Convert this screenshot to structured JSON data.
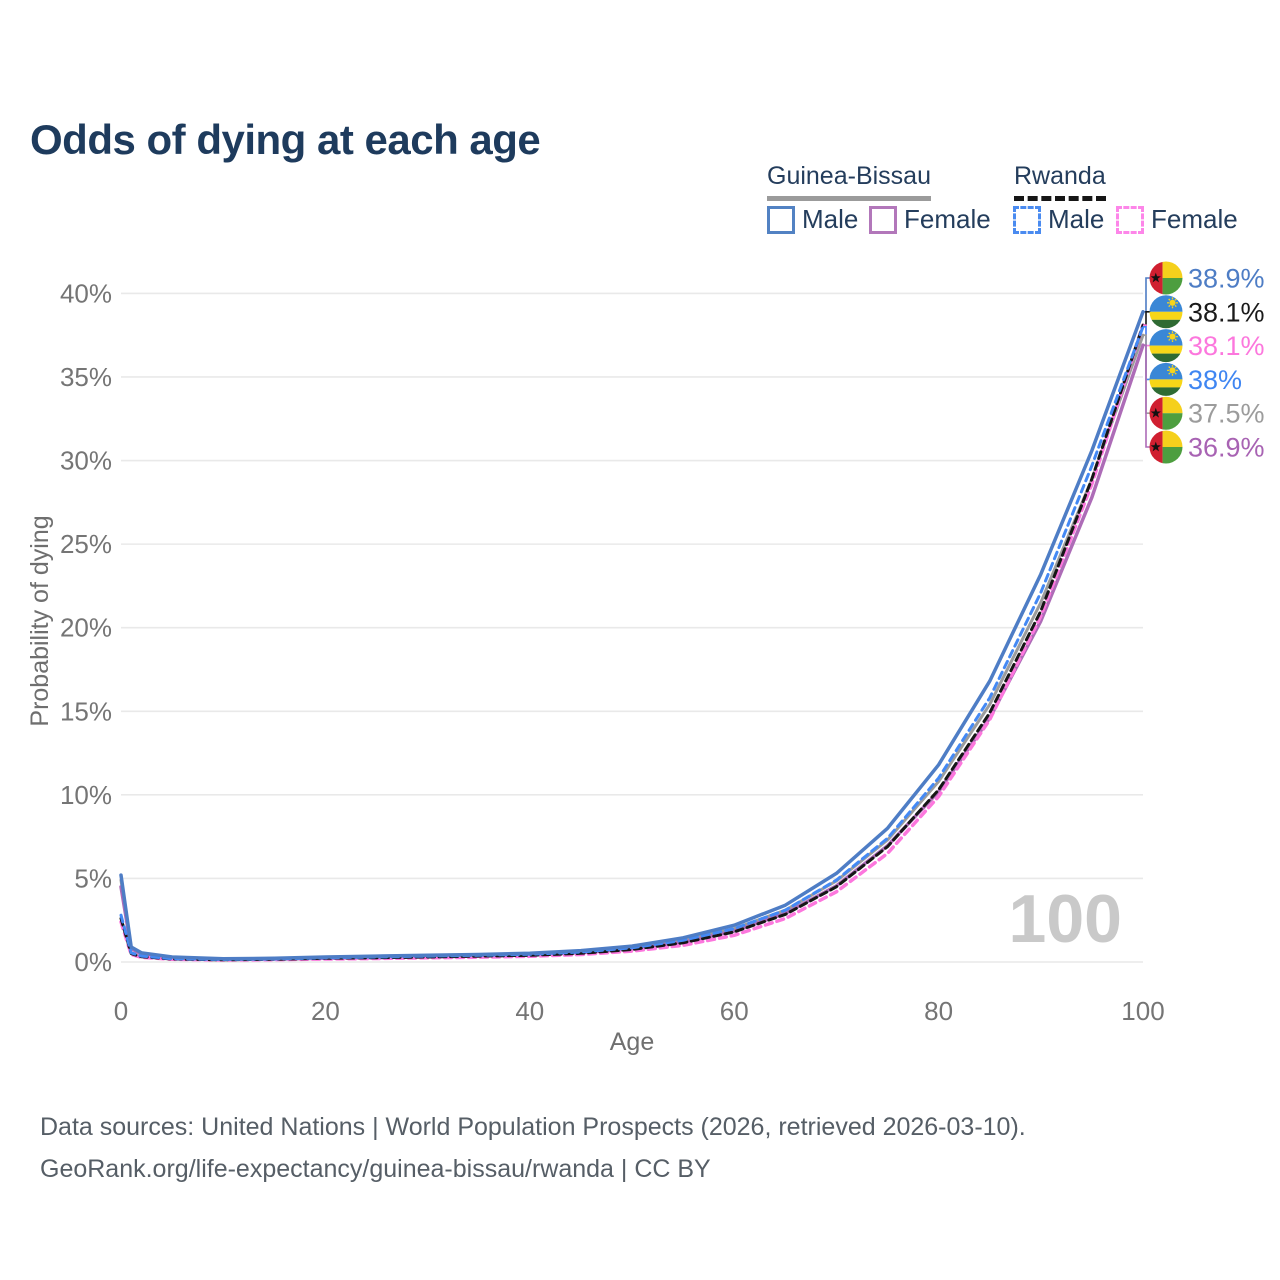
{
  "title": "Odds of dying at each age",
  "legend": {
    "groups": [
      {
        "label": "Guinea-Bissau",
        "line_style": "solid",
        "underline_color": "#9b9b9b"
      },
      {
        "label": "Rwanda",
        "line_style": "dashed",
        "underline_color": "#161616"
      }
    ],
    "items": [
      {
        "label": "Male",
        "country": "Guinea-Bissau",
        "box_color": "#5282c3",
        "dashed": false
      },
      {
        "label": "Female",
        "country": "Guinea-Bissau",
        "box_color": "#b277ba",
        "dashed": false
      },
      {
        "label": "Male",
        "country": "Rwanda",
        "box_color": "#4a8bf0",
        "dashed": true
      },
      {
        "label": "Female",
        "country": "Rwanda",
        "box_color": "#fd86e9",
        "dashed": true
      }
    ]
  },
  "watermark": "100",
  "footer": {
    "line1": "Data sources: United Nations | World Population Prospects (2026, retrieved 2026-03-10).",
    "line2": "GeoRank.org/life-expectancy/guinea-bissau/rwanda | CC BY"
  },
  "chart_data": {
    "type": "line",
    "title": "Odds of dying at each age",
    "xlabel": "Age",
    "ylabel": "Probability of dying",
    "xlim": [
      0,
      100
    ],
    "ylim": [
      0,
      40
    ],
    "grid": "horizontal",
    "legend_position": "top-right",
    "x_ticks": [
      {
        "v": 0,
        "label": "0"
      },
      {
        "v": 20,
        "label": "20"
      },
      {
        "v": 40,
        "label": "40"
      },
      {
        "v": 60,
        "label": "60"
      },
      {
        "v": 80,
        "label": "80"
      },
      {
        "v": 100,
        "label": "100"
      }
    ],
    "y_ticks": [
      {
        "v": 0,
        "label": "0%"
      },
      {
        "v": 5,
        "label": "5%"
      },
      {
        "v": 10,
        "label": "10%"
      },
      {
        "v": 15,
        "label": "15%"
      },
      {
        "v": 20,
        "label": "20%"
      },
      {
        "v": 25,
        "label": "25%"
      },
      {
        "v": 30,
        "label": "30%"
      },
      {
        "v": 35,
        "label": "35%"
      },
      {
        "v": 40,
        "label": "40%"
      }
    ],
    "x": [
      0,
      1,
      2,
      5,
      10,
      15,
      20,
      25,
      30,
      35,
      40,
      45,
      50,
      55,
      60,
      65,
      70,
      75,
      80,
      85,
      90,
      95,
      100
    ],
    "series": [
      {
        "name": "Guinea-Bissau Male",
        "flag": "guinea-bissau",
        "sex": "Male",
        "color": "#4e7dc5",
        "label_color": "#4e7dc5",
        "dash": null,
        "width": 3.5,
        "end_label": "38.9%",
        "values": [
          5.2,
          0.9,
          0.55,
          0.3,
          0.2,
          0.22,
          0.3,
          0.35,
          0.4,
          0.45,
          0.52,
          0.68,
          0.95,
          1.45,
          2.2,
          3.4,
          5.3,
          8.0,
          11.8,
          16.8,
          23.2,
          30.6,
          38.9
        ]
      },
      {
        "name": "Rwanda Both sexes",
        "flag": "rwanda",
        "sex": "Both",
        "color": "#161616",
        "label_color": "#1a1a1a",
        "dash": "7 4.5",
        "width": 3,
        "end_label": "38.1%",
        "values": [
          2.6,
          0.5,
          0.32,
          0.18,
          0.13,
          0.16,
          0.22,
          0.26,
          0.3,
          0.35,
          0.4,
          0.52,
          0.75,
          1.15,
          1.8,
          2.85,
          4.5,
          6.9,
          10.3,
          14.9,
          21.0,
          28.9,
          38.1
        ]
      },
      {
        "name": "Rwanda Female",
        "flag": "rwanda",
        "sex": "Female",
        "color": "#fc77dd",
        "label_color": "#fc77dd",
        "dash": "7 5",
        "width": 3.5,
        "end_label": "38.1%",
        "values": [
          2.4,
          0.45,
          0.28,
          0.16,
          0.12,
          0.14,
          0.18,
          0.21,
          0.25,
          0.29,
          0.34,
          0.45,
          0.65,
          1.0,
          1.6,
          2.6,
          4.2,
          6.5,
          9.9,
          14.5,
          20.7,
          28.6,
          38.1
        ]
      },
      {
        "name": "Rwanda Male",
        "flag": "rwanda",
        "sex": "Male",
        "color": "#4489f4",
        "label_color": "#3f86f2",
        "dash": "7 5",
        "width": 3,
        "end_label": "38%",
        "values": [
          2.8,
          0.55,
          0.35,
          0.2,
          0.15,
          0.18,
          0.25,
          0.3,
          0.35,
          0.4,
          0.46,
          0.6,
          0.85,
          1.3,
          2.0,
          3.1,
          4.9,
          7.4,
          11.0,
          15.8,
          22.1,
          29.7,
          38.0
        ]
      },
      {
        "name": "Guinea-Bissau Both sexes",
        "flag": "guinea-bissau",
        "sex": "Both",
        "color": "#9c9c9c",
        "label_color": "#9c9c9c",
        "dash": null,
        "width": 3,
        "end_label": "37.5%",
        "values": [
          4.9,
          0.85,
          0.5,
          0.28,
          0.18,
          0.2,
          0.26,
          0.31,
          0.36,
          0.41,
          0.47,
          0.62,
          0.85,
          1.3,
          2.0,
          3.1,
          4.85,
          7.3,
          10.8,
          15.4,
          21.5,
          28.9,
          37.5
        ]
      },
      {
        "name": "Guinea-Bissau Female",
        "flag": "guinea-bissau",
        "sex": "Female",
        "color": "#ad6cb7",
        "label_color": "#a863b3",
        "dash": null,
        "width": 3.5,
        "end_label": "36.9%",
        "values": [
          4.5,
          0.8,
          0.48,
          0.26,
          0.17,
          0.18,
          0.23,
          0.27,
          0.31,
          0.36,
          0.43,
          0.56,
          0.78,
          1.18,
          1.85,
          2.9,
          4.55,
          6.95,
          10.2,
          14.6,
          20.4,
          27.8,
          36.9
        ]
      }
    ],
    "flag_colors": {
      "guinea-bissau": {
        "red": "#d01f30",
        "yellow": "#f5d01c",
        "green": "#4d9e3f",
        "star": "#111111"
      },
      "rwanda": {
        "blue": "#3a87d6",
        "yellow": "#f7d618",
        "green": "#2f6b33",
        "sun": "#f7d41c"
      }
    }
  }
}
